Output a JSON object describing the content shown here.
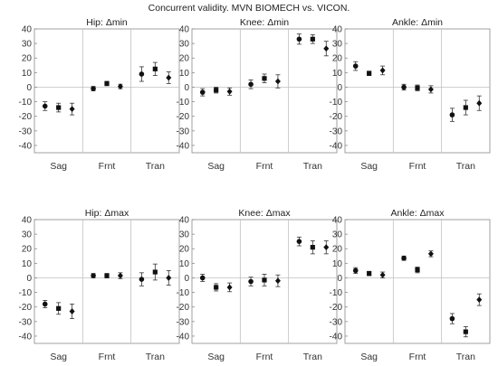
{
  "title": "Concurrent validity. MVN BIOMECH vs. VICON.",
  "chart_data": [
    {
      "type": "scatter",
      "title": "Hip: Δmin",
      "categories": [
        "Sag",
        "Frnt",
        "Tran"
      ],
      "ylim": [
        -45,
        40
      ],
      "yticks": [
        40,
        30,
        20,
        10,
        0,
        -10,
        -20,
        -30,
        -40
      ],
      "grid": false,
      "points": [
        {
          "category": "Sag",
          "marker": "circle",
          "y": -13,
          "err": 3
        },
        {
          "category": "Sag",
          "marker": "square",
          "y": -14,
          "err": 3
        },
        {
          "category": "Sag",
          "marker": "diamond",
          "y": -15,
          "err": 4
        },
        {
          "category": "Frnt",
          "marker": "circle",
          "y": -1,
          "err": 1.5
        },
        {
          "category": "Frnt",
          "marker": "square",
          "y": 2.5,
          "err": 1.5
        },
        {
          "category": "Frnt",
          "marker": "diamond",
          "y": 0.5,
          "err": 1.5
        },
        {
          "category": "Tran",
          "marker": "circle",
          "y": 9,
          "err": 5
        },
        {
          "category": "Tran",
          "marker": "square",
          "y": 12.5,
          "err": 4.5
        },
        {
          "category": "Tran",
          "marker": "diamond",
          "y": 6.5,
          "err": 4
        }
      ]
    },
    {
      "type": "scatter",
      "title": "Knee: Δmin",
      "categories": [
        "Sag",
        "Frnt",
        "Tran"
      ],
      "ylim": [
        -45,
        40
      ],
      "yticks": [
        40,
        30,
        20,
        10,
        0,
        -10,
        -20,
        -30,
        -40
      ],
      "grid": false,
      "points": [
        {
          "category": "Sag",
          "marker": "circle",
          "y": -3.5,
          "err": 2.5
        },
        {
          "category": "Sag",
          "marker": "square",
          "y": -2,
          "err": 2
        },
        {
          "category": "Sag",
          "marker": "diamond",
          "y": -3,
          "err": 2.5
        },
        {
          "category": "Frnt",
          "marker": "circle",
          "y": 2,
          "err": 3
        },
        {
          "category": "Frnt",
          "marker": "square",
          "y": 6,
          "err": 3
        },
        {
          "category": "Frnt",
          "marker": "diamond",
          "y": 4,
          "err": 4.5
        },
        {
          "category": "Tran",
          "marker": "circle",
          "y": 33,
          "err": 3.5
        },
        {
          "category": "Tran",
          "marker": "square",
          "y": 33,
          "err": 3
        },
        {
          "category": "Tran",
          "marker": "diamond",
          "y": 26.5,
          "err": 5
        }
      ]
    },
    {
      "type": "scatter",
      "title": "Ankle: Δmin",
      "categories": [
        "Sag",
        "Frnt",
        "Tran"
      ],
      "ylim": [
        -45,
        40
      ],
      "yticks": [
        40,
        30,
        20,
        10,
        0,
        -10,
        -20,
        -30,
        -40
      ],
      "grid": false,
      "points": [
        {
          "category": "Sag",
          "marker": "circle",
          "y": 14.5,
          "err": 3
        },
        {
          "category": "Sag",
          "marker": "square",
          "y": 9.5,
          "err": 1.5
        },
        {
          "category": "Sag",
          "marker": "diamond",
          "y": 11.5,
          "err": 3
        },
        {
          "category": "Frnt",
          "marker": "circle",
          "y": 0,
          "err": 2
        },
        {
          "category": "Frnt",
          "marker": "square",
          "y": -0.5,
          "err": 2
        },
        {
          "category": "Frnt",
          "marker": "diamond",
          "y": -1.5,
          "err": 2.5
        },
        {
          "category": "Tran",
          "marker": "circle",
          "y": -19,
          "err": 4.5
        },
        {
          "category": "Tran",
          "marker": "square",
          "y": -14,
          "err": 5
        },
        {
          "category": "Tran",
          "marker": "diamond",
          "y": -11,
          "err": 5
        }
      ]
    },
    {
      "type": "scatter",
      "title": "Hip: Δmax",
      "categories": [
        "Sag",
        "Frnt",
        "Tran"
      ],
      "ylim": [
        -45,
        40
      ],
      "yticks": [
        40,
        30,
        20,
        10,
        0,
        -10,
        -20,
        -30,
        -40
      ],
      "grid": false,
      "points": [
        {
          "category": "Sag",
          "marker": "circle",
          "y": -18,
          "err": 2.5
        },
        {
          "category": "Sag",
          "marker": "square",
          "y": -21,
          "err": 4
        },
        {
          "category": "Sag",
          "marker": "diamond",
          "y": -23,
          "err": 5
        },
        {
          "category": "Frnt",
          "marker": "circle",
          "y": 1.5,
          "err": 1.5
        },
        {
          "category": "Frnt",
          "marker": "square",
          "y": 1.5,
          "err": 1.5
        },
        {
          "category": "Frnt",
          "marker": "diamond",
          "y": 1.5,
          "err": 2
        },
        {
          "category": "Tran",
          "marker": "circle",
          "y": -1,
          "err": 4.5
        },
        {
          "category": "Tran",
          "marker": "square",
          "y": 4,
          "err": 5.5
        },
        {
          "category": "Tran",
          "marker": "diamond",
          "y": 0,
          "err": 5
        }
      ]
    },
    {
      "type": "scatter",
      "title": "Knee: Δmax",
      "categories": [
        "Sag",
        "Frnt",
        "Tran"
      ],
      "ylim": [
        -45,
        40
      ],
      "yticks": [
        40,
        30,
        20,
        10,
        0,
        -10,
        -20,
        -30,
        -40
      ],
      "grid": false,
      "points": [
        {
          "category": "Sag",
          "marker": "circle",
          "y": 0,
          "err": 2.5
        },
        {
          "category": "Sag",
          "marker": "square",
          "y": -6.5,
          "err": 2.5
        },
        {
          "category": "Sag",
          "marker": "diamond",
          "y": -6.5,
          "err": 3
        },
        {
          "category": "Frnt",
          "marker": "circle",
          "y": -2.5,
          "err": 3
        },
        {
          "category": "Frnt",
          "marker": "square",
          "y": -1.5,
          "err": 4
        },
        {
          "category": "Frnt",
          "marker": "diamond",
          "y": -2,
          "err": 4
        },
        {
          "category": "Tran",
          "marker": "circle",
          "y": 25,
          "err": 3
        },
        {
          "category": "Tran",
          "marker": "square",
          "y": 21,
          "err": 4.5
        },
        {
          "category": "Tran",
          "marker": "diamond",
          "y": 21,
          "err": 4.5
        }
      ]
    },
    {
      "type": "scatter",
      "title": "Ankle: Δmax",
      "categories": [
        "Sag",
        "Frnt",
        "Tran"
      ],
      "ylim": [
        -45,
        40
      ],
      "yticks": [
        40,
        30,
        20,
        10,
        0,
        -10,
        -20,
        -30,
        -40
      ],
      "grid": false,
      "points": [
        {
          "category": "Sag",
          "marker": "circle",
          "y": 5,
          "err": 2
        },
        {
          "category": "Sag",
          "marker": "square",
          "y": 3,
          "err": 1.5
        },
        {
          "category": "Sag",
          "marker": "diamond",
          "y": 2,
          "err": 2
        },
        {
          "category": "Frnt",
          "marker": "circle",
          "y": 13.5,
          "err": 1.5
        },
        {
          "category": "Frnt",
          "marker": "square",
          "y": 5.5,
          "err": 2
        },
        {
          "category": "Frnt",
          "marker": "diamond",
          "y": 16.5,
          "err": 2
        },
        {
          "category": "Tran",
          "marker": "circle",
          "y": -28,
          "err": 3.5
        },
        {
          "category": "Tran",
          "marker": "square",
          "y": -37,
          "err": 3.5
        },
        {
          "category": "Tran",
          "marker": "diamond",
          "y": -15,
          "err": 4
        }
      ]
    }
  ]
}
